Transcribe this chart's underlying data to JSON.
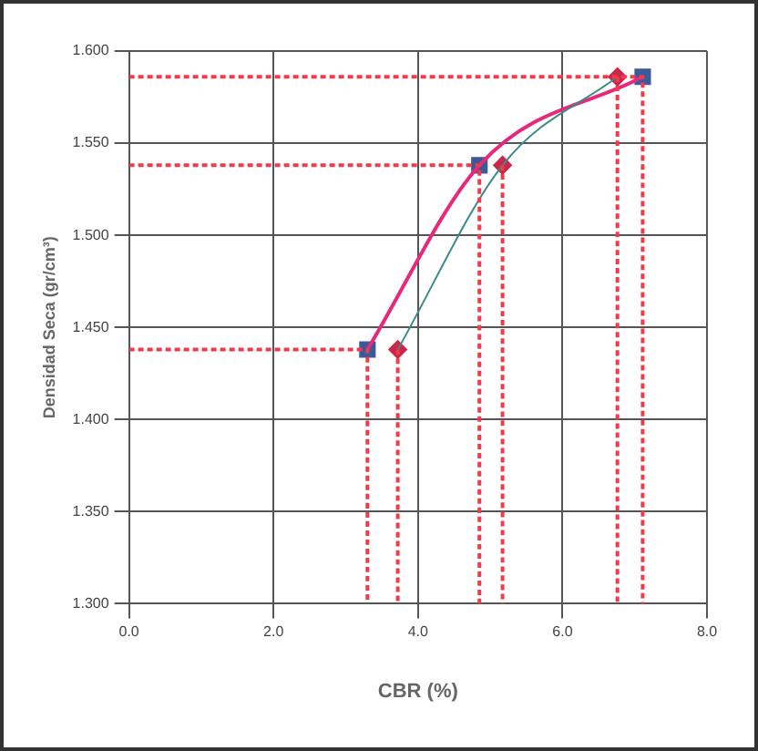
{
  "chart_data": {
    "type": "scatter",
    "xlabel": "CBR (%)",
    "ylabel": "Densidad Seca (gr/cm³)",
    "xlim": [
      0,
      8
    ],
    "ylim": [
      1.3,
      1.6
    ],
    "xticks": [
      {
        "value": 0,
        "label": "0.0"
      },
      {
        "value": 2,
        "label": "2.0"
      },
      {
        "value": 4,
        "label": "4.0"
      },
      {
        "value": 6,
        "label": "6.0"
      },
      {
        "value": 8,
        "label": "8.0"
      }
    ],
    "yticks": [
      {
        "value": 1.3,
        "label": "1.300"
      },
      {
        "value": 1.35,
        "label": "1.350"
      },
      {
        "value": 1.4,
        "label": "1.400"
      },
      {
        "value": 1.45,
        "label": "1.450"
      },
      {
        "value": 1.5,
        "label": "1.500"
      },
      {
        "value": 1.55,
        "label": "1.550"
      },
      {
        "value": 1.6,
        "label": "1.600"
      }
    ],
    "grid": true,
    "legend": false,
    "series": [
      {
        "type": "line",
        "line_style": "dotted",
        "marker": "none",
        "color": "#f03c4a",
        "x": [
          0,
          3.3,
          3.3
        ],
        "values": [
          1.438,
          1.438,
          1.3
        ]
      },
      {
        "type": "line",
        "line_style": "dotted",
        "marker": "none",
        "color": "#f03c4a",
        "x": [
          0,
          4.85,
          4.85
        ],
        "values": [
          1.538,
          1.538,
          1.3
        ]
      },
      {
        "type": "line",
        "line_style": "dotted",
        "marker": "none",
        "color": "#f03c4a",
        "x": [
          0,
          7.11,
          7.11
        ],
        "values": [
          1.586,
          1.586,
          1.3
        ]
      },
      {
        "type": "line",
        "line_style": "dotted",
        "marker": "none",
        "color": "#f03c4a",
        "x": [
          3.72,
          3.72
        ],
        "values": [
          1.438,
          1.3
        ]
      },
      {
        "type": "line",
        "line_style": "dotted",
        "marker": "none",
        "color": "#f03c4a",
        "x": [
          5.17,
          5.17
        ],
        "values": [
          1.538,
          1.3
        ]
      },
      {
        "type": "line",
        "line_style": "dotted",
        "marker": "none",
        "color": "#f03c4a",
        "x": [
          6.76,
          6.76
        ],
        "values": [
          1.586,
          1.3
        ]
      },
      {
        "type": "line",
        "line_style": "solid",
        "marker": "none",
        "color": "#3a8a8a",
        "x": [
          3.72,
          5.17,
          6.76
        ],
        "values": [
          1.438,
          1.538,
          1.586
        ]
      },
      {
        "type": "line",
        "line_style": "solid",
        "marker": "none",
        "color": "#e8287a",
        "x": [
          3.3,
          4.85,
          7.11
        ],
        "values": [
          1.438,
          1.538,
          1.586
        ]
      },
      {
        "type": "scatter",
        "marker": "diamond",
        "color": "#c8284a",
        "x": [
          3.72,
          5.17,
          6.76
        ],
        "values": [
          1.438,
          1.538,
          1.586
        ]
      },
      {
        "type": "scatter",
        "marker": "square",
        "color": "#3b5a9a",
        "x": [
          3.3,
          4.85,
          7.11
        ],
        "values": [
          1.438,
          1.538,
          1.586
        ]
      }
    ]
  }
}
